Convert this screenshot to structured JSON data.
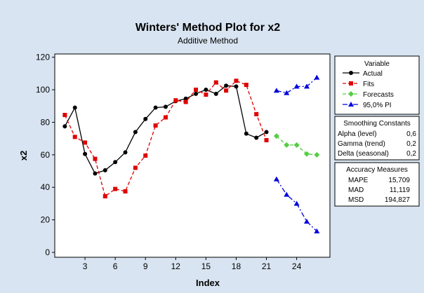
{
  "chart_data": {
    "type": "line",
    "title": "Winters' Method Plot for x2",
    "subtitle": "Additive Method",
    "xlabel": "Index",
    "ylabel": "x2",
    "xlim": [
      0,
      27.3
    ],
    "ylim": [
      -3,
      122
    ],
    "x_ticks": [
      3,
      6,
      9,
      12,
      15,
      18,
      21,
      24
    ],
    "y_ticks": [
      0,
      20,
      40,
      60,
      80,
      100,
      120
    ],
    "series": [
      {
        "name": "Actual",
        "color": "#000000",
        "dash": "solid",
        "marker": "circle",
        "x": [
          1,
          2,
          3,
          4,
          5,
          6,
          7,
          8,
          9,
          10,
          11,
          12,
          13,
          14,
          15,
          16,
          17,
          18,
          19,
          20,
          21
        ],
        "values": [
          77.5,
          89,
          60.5,
          48.5,
          50.5,
          55.5,
          61.5,
          74,
          82,
          89,
          89.5,
          93,
          94.5,
          97.5,
          100,
          97.5,
          102.5,
          102,
          73,
          70.5,
          74
        ]
      },
      {
        "name": "Fits",
        "color": "#e00000",
        "dash": "dashed",
        "marker": "square",
        "x": [
          1,
          2,
          3,
          4,
          5,
          6,
          7,
          8,
          9,
          10,
          11,
          12,
          13,
          14,
          15,
          16,
          17,
          18,
          19,
          20,
          21
        ],
        "values": [
          84.5,
          71,
          67.5,
          57.5,
          34.5,
          39,
          37.5,
          52,
          59.5,
          78,
          83,
          93.5,
          92.5,
          100,
          97,
          104.5,
          99.5,
          105.5,
          103,
          85,
          69
        ]
      },
      {
        "name": "Forecasts",
        "color": "#55cc44",
        "dash": "dashed",
        "marker": "diamond",
        "x": [
          22,
          23,
          24,
          25,
          26
        ],
        "values": [
          71.5,
          66,
          66,
          60.5,
          60
        ]
      },
      {
        "name": "95,0% PI",
        "color": "#0000dd",
        "dash": "dashdot",
        "marker": "triangle",
        "x": [
          22,
          23,
          24,
          25,
          26
        ],
        "values": [
          99.5,
          98,
          102,
          102,
          107.5
        ],
        "lower_values": [
          45,
          35.5,
          30,
          19,
          13
        ]
      }
    ],
    "legend": {
      "title": "Variable",
      "placement": "right",
      "items": [
        "Actual",
        "Fits",
        "Forecasts",
        "95,0% PI"
      ]
    },
    "smoothing_constants": {
      "title": "Smoothing Constants",
      "rows": [
        {
          "label": "Alpha (level)",
          "value": "0,6"
        },
        {
          "label": "Gamma (trend)",
          "value": "0,2"
        },
        {
          "label": "Delta (seasonal)",
          "value": "0,2"
        }
      ]
    },
    "accuracy_measures": {
      "title": "Accuracy Measures",
      "rows": [
        {
          "label": "MAPE",
          "value": "15,709"
        },
        {
          "label": "MAD",
          "value": "11,119"
        },
        {
          "label": "MSD",
          "value": "194,827"
        }
      ]
    }
  }
}
